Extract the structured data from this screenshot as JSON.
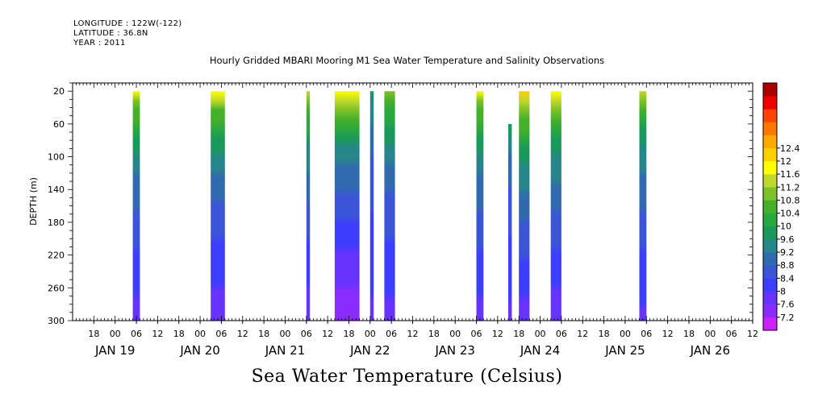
{
  "header": {
    "longitude": "LONGITUDE : 122W(-122)",
    "latitude": "LATITUDE : 36.8N",
    "year": "YEAR : 2011"
  },
  "chart_data": {
    "type": "heatmap",
    "title": "Hourly Gridded MBARI Mooring M1 Sea Water Temperature and Salinity Observations",
    "caption": "Sea Water Temperature (Celsius)",
    "ylabel": "DEPTH (m)",
    "x_range_hours": [
      "2011-01-18 12:00",
      "2011-01-26 12:00"
    ],
    "x_hour_ticks": [
      "18",
      "00",
      "06",
      "12",
      "18",
      "00",
      "06",
      "12",
      "18",
      "00",
      "06",
      "12",
      "18",
      "00",
      "06",
      "12",
      "18",
      "00",
      "06",
      "12",
      "18",
      "00",
      "06",
      "12",
      "18",
      "00",
      "06",
      "12",
      "18",
      "00",
      "06",
      "12"
    ],
    "x_day_labels": [
      {
        "label": "JAN 19",
        "date": "2011-01-19"
      },
      {
        "label": "JAN 20",
        "date": "2011-01-20"
      },
      {
        "label": "JAN 21",
        "date": "2011-01-21"
      },
      {
        "label": "JAN 22",
        "date": "2011-01-22"
      },
      {
        "label": "JAN 23",
        "date": "2011-01-23"
      },
      {
        "label": "JAN 24",
        "date": "2011-01-24"
      },
      {
        "label": "JAN 25",
        "date": "2011-01-25"
      },
      {
        "label": "JAN 26",
        "date": "2011-01-26"
      }
    ],
    "y_ticks": [
      20,
      60,
      100,
      140,
      180,
      220,
      260,
      300
    ],
    "y_range": [
      10,
      300
    ],
    "y_reversed": true,
    "colorbar": {
      "levels": [
        7.2,
        7.6,
        8,
        8.4,
        8.8,
        9.2,
        9.6,
        10,
        10.4,
        10.8,
        11.2,
        11.6,
        12,
        12.4
      ],
      "labels": [
        "7.2",
        "7.6",
        "8",
        "8.4",
        "8.8",
        "9.2",
        "9.6",
        "10",
        "10.4",
        "10.8",
        "11.2",
        "11.6",
        "12",
        "12.4"
      ],
      "colors": [
        "#cc22ff",
        "#8a2cff",
        "#6633ff",
        "#3d3dff",
        "#3b55d8",
        "#306bb0",
        "#268689",
        "#1a9a5a",
        "#2aa840",
        "#45b02a",
        "#7dc228",
        "#bfd82b",
        "#ffff00",
        "#ffd000",
        "#ffaa00",
        "#ff7700",
        "#ff4400",
        "#ee0000",
        "#aa0000"
      ]
    },
    "data_segments": [
      {
        "start": "2011-01-19 05:00",
        "end": "2011-01-19 07:00",
        "top_depth": 20,
        "bottom_depth": 300,
        "surface_temp": 11.6,
        "bottom_temp": 7.8
      },
      {
        "start": "2011-01-20 03:00",
        "end": "2011-01-20 07:00",
        "top_depth": 20,
        "bottom_depth": 300,
        "surface_temp": 11.7,
        "bottom_temp": 7.7
      },
      {
        "start": "2011-01-21 06:00",
        "end": "2011-01-21 07:00",
        "top_depth": 20,
        "bottom_depth": 300,
        "surface_temp": 11.5,
        "bottom_temp": 7.7
      },
      {
        "start": "2011-01-21 14:00",
        "end": "2011-01-21 21:00",
        "top_depth": 20,
        "bottom_depth": 300,
        "surface_temp": 11.9,
        "bottom_temp": 7.3
      },
      {
        "start": "2011-01-22 00:00",
        "end": "2011-01-22 01:00",
        "top_depth": 20,
        "bottom_depth": 300,
        "surface_temp": 9.8,
        "bottom_temp": 7.9
      },
      {
        "start": "2011-01-22 04:00",
        "end": "2011-01-22 07:00",
        "top_depth": 20,
        "bottom_depth": 300,
        "surface_temp": 11.1,
        "bottom_temp": 7.8
      },
      {
        "start": "2011-01-23 06:00",
        "end": "2011-01-23 08:00",
        "top_depth": 20,
        "bottom_depth": 300,
        "surface_temp": 11.6,
        "bottom_temp": 7.8
      },
      {
        "start": "2011-01-23 15:00",
        "end": "2011-01-23 16:00",
        "top_depth": 60,
        "bottom_depth": 300,
        "surface_temp": 9.9,
        "bottom_temp": 7.9
      },
      {
        "start": "2011-01-23 18:00",
        "end": "2011-01-23 21:00",
        "top_depth": 20,
        "bottom_depth": 300,
        "surface_temp": 12.1,
        "bottom_temp": 7.8
      },
      {
        "start": "2011-01-24 03:00",
        "end": "2011-01-24 06:00",
        "top_depth": 20,
        "bottom_depth": 300,
        "surface_temp": 11.9,
        "bottom_temp": 7.7
      },
      {
        "start": "2011-01-25 04:00",
        "end": "2011-01-25 06:00",
        "top_depth": 20,
        "bottom_depth": 300,
        "surface_temp": 11.3,
        "bottom_temp": 7.9
      }
    ]
  }
}
